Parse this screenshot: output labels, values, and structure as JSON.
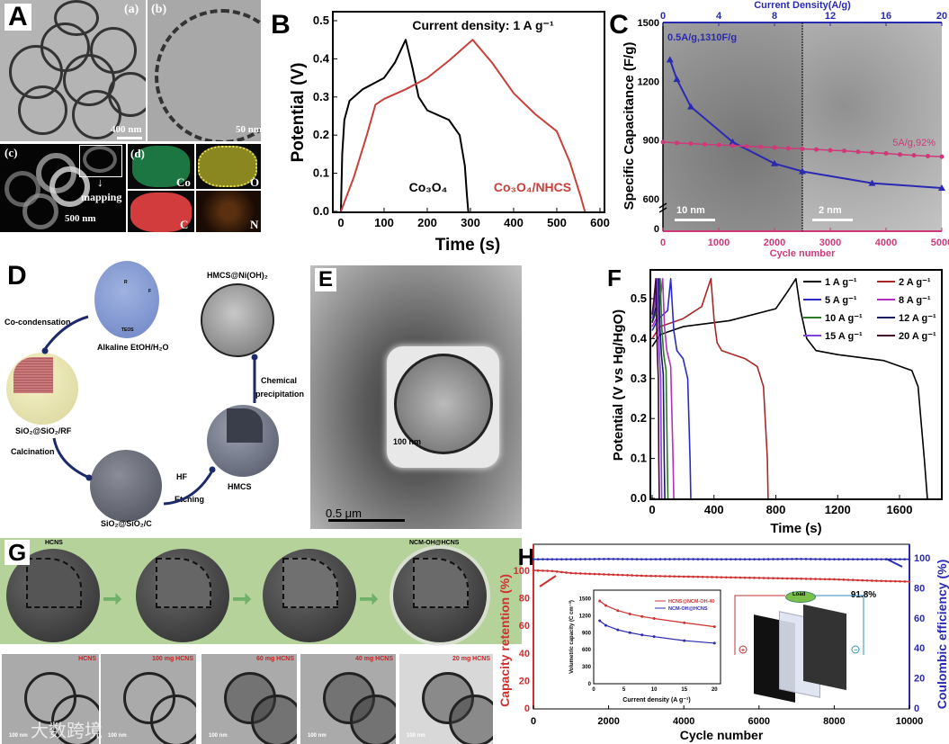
{
  "panelA": {
    "label": "A",
    "sub_a": "(a)",
    "sub_b": "(b)",
    "sub_c": "(c)",
    "sub_d": "(d)",
    "scale_a": "400 nm",
    "scale_b": "50 nm",
    "scale_c": "500 nm",
    "mapping": "mapping",
    "elements": [
      {
        "symbol": "Co",
        "color": "#1f8a4c"
      },
      {
        "symbol": "O",
        "color": "#c8c43a"
      },
      {
        "symbol": "C",
        "color": "#d23c3c"
      },
      {
        "symbol": "N",
        "color": "#b0601a"
      }
    ]
  },
  "panelD": {
    "label": "D",
    "steps": {
      "precursor": "Alkaline EtOH/H₂O",
      "co_condensation": "Co-condensation",
      "sphere1": "SiO₂@SiO₂/RF",
      "calcination": "Calcination",
      "sphere2": "SiO₂@SiO₂/C",
      "hf": "HF",
      "etching": "Etching",
      "sphere3": "HMCS",
      "chem1": "Chemical",
      "chem2": "precipitation",
      "sphere4": "HMCS@Ni(OH)₂"
    },
    "molecule_labels": {
      "r": "R",
      "f": "F",
      "teos": "TEOS"
    }
  },
  "panelE": {
    "label": "E",
    "inset_scale": "100 nm",
    "scale": "0.5 μm"
  },
  "panelG": {
    "label": "G",
    "top_first": "HCNS",
    "top_last": "NCM-OH@HCNS",
    "images": [
      {
        "label": "HCNS",
        "scale": "100 nm"
      },
      {
        "label": "100 mg HCNS",
        "scale": "100 nm"
      },
      {
        "label": "60 mg HCNS",
        "scale": "100 nm"
      },
      {
        "label": "40 mg HCNS",
        "scale": "100 nm"
      },
      {
        "label": "20 mg HCNS",
        "scale": "100 nm"
      }
    ],
    "watermark": "大数跨境"
  },
  "chart_data": [
    {
      "panel": "B",
      "type": "line",
      "annotation": "Current density: 1 A g⁻¹",
      "xlabel": "Time (s)",
      "ylabel": "Potential (V)",
      "xlim": [
        0,
        600
      ],
      "ylim": [
        0,
        0.5
      ],
      "xticks": [
        "0",
        "100",
        "200",
        "300",
        "400",
        "500",
        "600"
      ],
      "yticks": [
        "0.0",
        "0.1",
        "0.2",
        "0.3",
        "0.4",
        "0.5"
      ],
      "series": [
        {
          "name": "Co₃O₄",
          "color": "#000000",
          "points": [
            [
              0,
              0
            ],
            [
              3,
              0.15
            ],
            [
              8,
              0.24
            ],
            [
              20,
              0.29
            ],
            [
              50,
              0.32
            ],
            [
              100,
              0.35
            ],
            [
              125,
              0.39
            ],
            [
              150,
              0.45
            ],
            [
              165,
              0.38
            ],
            [
              180,
              0.3
            ],
            [
              200,
              0.265
            ],
            [
              250,
              0.24
            ],
            [
              275,
              0.2
            ],
            [
              287,
              0.12
            ],
            [
              292,
              0.04
            ],
            [
              295,
              0
            ]
          ]
        },
        {
          "name": "Co₃O₄/NHCS",
          "color": "#c8403a",
          "points": [
            [
              0,
              0
            ],
            [
              30,
              0.09
            ],
            [
              60,
              0.2
            ],
            [
              80,
              0.28
            ],
            [
              100,
              0.295
            ],
            [
              150,
              0.32
            ],
            [
              200,
              0.35
            ],
            [
              250,
              0.395
            ],
            [
              305,
              0.45
            ],
            [
              350,
              0.39
            ],
            [
              400,
              0.31
            ],
            [
              450,
              0.255
            ],
            [
              500,
              0.21
            ],
            [
              530,
              0.13
            ],
            [
              555,
              0.04
            ],
            [
              565,
              0
            ]
          ]
        }
      ]
    },
    {
      "panel": "C",
      "type": "line",
      "top_xlabel": "Current Density(A/g)",
      "xlabel": "Cycle number",
      "ylabel": "Specific Capacitance (F/g)",
      "top_xlim": [
        0,
        20
      ],
      "xlim": [
        0,
        5000
      ],
      "yticks": [
        "0",
        "600",
        "900",
        "1200",
        "1500"
      ],
      "top_xticks": [
        "0",
        "4",
        "8",
        "12",
        "16",
        "20"
      ],
      "xticks": [
        "0",
        "1000",
        "2000",
        "3000",
        "4000",
        "5000"
      ],
      "axis_break": 600,
      "annotations": {
        "rate": "0.5A/g,1310F/g",
        "cycle": "5A/g,92%"
      },
      "scale_left": "10 nm",
      "scale_right": "2 nm",
      "series": [
        {
          "axis": "top",
          "color": "#2a2ab0",
          "points": [
            [
              0.5,
              1310
            ],
            [
              1,
              1210
            ],
            [
              2,
              1070
            ],
            [
              5,
              890
            ],
            [
              8,
              780
            ],
            [
              10,
              740
            ],
            [
              15,
              680
            ],
            [
              20,
              655
            ]
          ]
        },
        {
          "axis": "bottom",
          "color": "#d0387a",
          "points": [
            [
              0,
              890
            ],
            [
              250,
              885
            ],
            [
              500,
              882
            ],
            [
              750,
              878
            ],
            [
              1000,
              875
            ],
            [
              1250,
              872
            ],
            [
              1500,
              868
            ],
            [
              1750,
              865
            ],
            [
              2000,
              862
            ],
            [
              2250,
              858
            ],
            [
              2500,
              855
            ],
            [
              2750,
              852
            ],
            [
              3000,
              848
            ],
            [
              3250,
              845
            ],
            [
              3500,
              840
            ],
            [
              3750,
              836
            ],
            [
              4000,
              832
            ],
            [
              4250,
              826
            ],
            [
              4500,
              822
            ],
            [
              4750,
              818
            ],
            [
              5000,
              815
            ]
          ]
        }
      ]
    },
    {
      "panel": "F",
      "type": "line",
      "xlabel": "Time (s)",
      "ylabel": "Potential (V vs Hg/HgO)",
      "xlim": [
        0,
        1870
      ],
      "ylim": [
        0,
        0.55
      ],
      "xticks": [
        "0",
        "400",
        "800",
        "1200",
        "1600"
      ],
      "yticks": [
        "0.0",
        "0.1",
        "0.2",
        "0.3",
        "0.4",
        "0.5"
      ],
      "legend": "top-right",
      "series": [
        {
          "name": "1 A g⁻¹",
          "color": "#000000",
          "points": [
            [
              0,
              0.38
            ],
            [
              50,
              0.41
            ],
            [
              200,
              0.43
            ],
            [
              500,
              0.445
            ],
            [
              800,
              0.475
            ],
            [
              880,
              0.52
            ],
            [
              930,
              0.55
            ],
            [
              960,
              0.47
            ],
            [
              1000,
              0.4
            ],
            [
              1060,
              0.37
            ],
            [
              1200,
              0.36
            ],
            [
              1500,
              0.345
            ],
            [
              1680,
              0.32
            ],
            [
              1720,
              0.28
            ],
            [
              1760,
              0.1
            ],
            [
              1780,
              0
            ]
          ]
        },
        {
          "name": "2 A g⁻¹",
          "color": "#a82828",
          "points": [
            [
              0,
              0.4
            ],
            [
              50,
              0.43
            ],
            [
              200,
              0.45
            ],
            [
              320,
              0.48
            ],
            [
              380,
              0.55
            ],
            [
              400,
              0.45
            ],
            [
              420,
              0.39
            ],
            [
              450,
              0.37
            ],
            [
              600,
              0.35
            ],
            [
              680,
              0.33
            ],
            [
              720,
              0.28
            ],
            [
              745,
              0.1
            ],
            [
              750,
              0
            ]
          ]
        },
        {
          "name": "5 A g⁻¹",
          "color": "#2a2ac8",
          "points": [
            [
              0,
              0.42
            ],
            [
              40,
              0.45
            ],
            [
              100,
              0.47
            ],
            [
              120,
              0.55
            ],
            [
              140,
              0.42
            ],
            [
              160,
              0.37
            ],
            [
              200,
              0.35
            ],
            [
              230,
              0.3
            ],
            [
              245,
              0.1
            ],
            [
              250,
              0
            ]
          ]
        },
        {
          "name": "8 A g⁻¹",
          "color": "#b030c0",
          "points": [
            [
              0,
              0.43
            ],
            [
              40,
              0.46
            ],
            [
              68,
              0.55
            ],
            [
              80,
              0.43
            ],
            [
              95,
              0.37
            ],
            [
              120,
              0.33
            ],
            [
              135,
              0.1
            ],
            [
              140,
              0
            ]
          ]
        },
        {
          "name": "10 A g⁻¹",
          "color": "#2a7a2a",
          "points": [
            [
              0,
              0.44
            ],
            [
              30,
              0.47
            ],
            [
              52,
              0.55
            ],
            [
              62,
              0.43
            ],
            [
              75,
              0.36
            ],
            [
              90,
              0.32
            ],
            [
              98,
              0.1
            ],
            [
              102,
              0
            ]
          ]
        },
        {
          "name": "12 A g⁻¹",
          "color": "#1a1a60",
          "points": [
            [
              0,
              0.44
            ],
            [
              25,
              0.48
            ],
            [
              42,
              0.55
            ],
            [
              50,
              0.43
            ],
            [
              60,
              0.36
            ],
            [
              72,
              0.31
            ],
            [
              78,
              0.1
            ],
            [
              82,
              0
            ]
          ]
        },
        {
          "name": "15 A g⁻¹",
          "color": "#8040e0",
          "points": [
            [
              0,
              0.45
            ],
            [
              18,
              0.49
            ],
            [
              33,
              0.55
            ],
            [
              40,
              0.43
            ],
            [
              47,
              0.36
            ],
            [
              55,
              0.3
            ],
            [
              59,
              0.1
            ],
            [
              62,
              0
            ]
          ]
        },
        {
          "name": "20 A g⁻¹",
          "color": "#400830",
          "points": [
            [
              0,
              0.46
            ],
            [
              12,
              0.5
            ],
            [
              24,
              0.55
            ],
            [
              29,
              0.43
            ],
            [
              34,
              0.36
            ],
            [
              40,
              0.3
            ],
            [
              43,
              0.1
            ],
            [
              46,
              0
            ]
          ]
        }
      ]
    },
    {
      "panel": "H",
      "type": "scatter",
      "xlabel": "Cycle number",
      "ylabel_left": "Capacity retention (%)",
      "ylabel_right": "Coulombic efficiency (%)",
      "xlim": [
        0,
        10000
      ],
      "ylim": [
        0,
        100
      ],
      "xticks": [
        "0",
        "2000",
        "4000",
        "6000",
        "8000",
        "10000"
      ],
      "yticks": [
        "0",
        "20",
        "40",
        "60",
        "80",
        "100"
      ],
      "annotation": "91.8%",
      "series": [
        {
          "axis": "left",
          "color": "#d03030",
          "points": [
            [
              0,
              100
            ],
            [
              500,
              99.5
            ],
            [
              1000,
              98
            ],
            [
              2000,
              97
            ],
            [
              3000,
              96
            ],
            [
              4000,
              95.5
            ],
            [
              5000,
              95
            ],
            [
              6000,
              94.5
            ],
            [
              7000,
              94
            ],
            [
              8000,
              93.5
            ],
            [
              9000,
              92.5
            ],
            [
              10000,
              91.8
            ]
          ]
        },
        {
          "axis": "right",
          "color": "#2a2ab0",
          "points": [
            [
              0,
              99
            ],
            [
              1000,
              99
            ],
            [
              2000,
              99.2
            ],
            [
              3000,
              99
            ],
            [
              4000,
              99.1
            ],
            [
              5000,
              99
            ],
            [
              6000,
              99
            ],
            [
              7000,
              99.2
            ],
            [
              8000,
              99
            ],
            [
              9000,
              99
            ],
            [
              10000,
              99
            ]
          ]
        }
      ],
      "inset": {
        "type": "line",
        "xlabel": "Current density (A g⁻¹)",
        "ylabel": "Volumetric capacity (C cm⁻³)",
        "xlim": [
          0,
          21
        ],
        "ylim": [
          0,
          1650
        ],
        "xticks": [
          "0",
          "5",
          "10",
          "15",
          "20"
        ],
        "yticks": [
          "0",
          "300",
          "600",
          "900",
          "1200",
          "1500"
        ],
        "series": [
          {
            "name": "HCNS@NCM-OH-40",
            "color": "#d03030",
            "points": [
              [
                1,
                1460
              ],
              [
                2,
                1380
              ],
              [
                4,
                1290
              ],
              [
                6,
                1230
              ],
              [
                8,
                1185
              ],
              [
                10,
                1150
              ],
              [
                15,
                1075
              ],
              [
                20,
                1005
              ]
            ]
          },
          {
            "name": "NCM-OH@HCNS",
            "color": "#2a2ab0",
            "points": [
              [
                1,
                1110
              ],
              [
                2,
                1030
              ],
              [
                4,
                950
              ],
              [
                6,
                900
              ],
              [
                8,
                860
              ],
              [
                10,
                830
              ],
              [
                15,
                760
              ],
              [
                20,
                715
              ]
            ]
          }
        ]
      },
      "device": {
        "load": "Load",
        "positive": "+",
        "negative": "−"
      }
    }
  ]
}
